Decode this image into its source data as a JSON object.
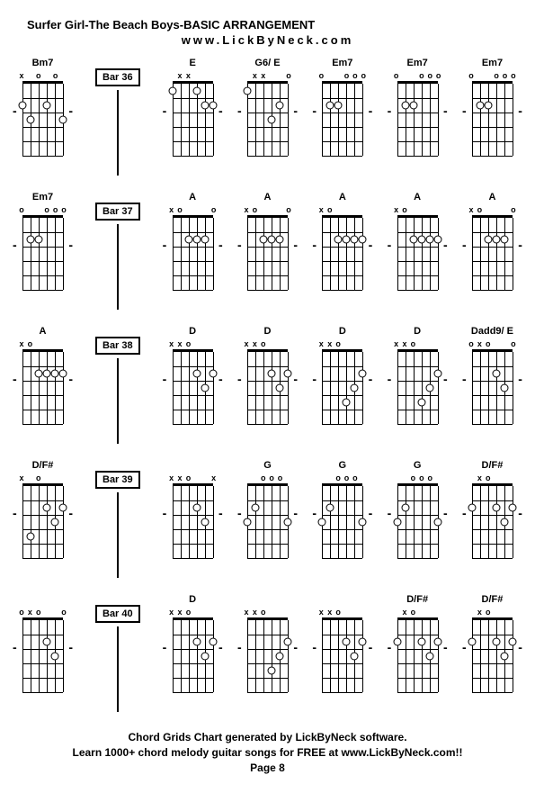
{
  "title": "Surfer Girl-The Beach Boys-BASIC ARRANGEMENT",
  "subtitle": "www.LickByNeck.com",
  "footer": {
    "line1": "Chord Grids Chart generated by LickByNeck software.",
    "line2": "Learn 1000+ chord melody guitar songs for FREE at www.LickByNeck.com!!",
    "line3": "Page 8"
  },
  "rows": [
    {
      "cells": [
        {
          "type": "chord",
          "name": "Bm7",
          "nut": [
            "x",
            "",
            "o",
            "",
            "o",
            ""
          ],
          "dots": [
            [
              0,
              2
            ],
            [
              3,
              2
            ],
            [
              1,
              3
            ],
            [
              5,
              3
            ]
          ]
        },
        {
          "type": "bar",
          "label": "Bar 36"
        },
        {
          "type": "chord",
          "name": "E",
          "nut": [
            "",
            "x",
            "x",
            "",
            "",
            ""
          ],
          "dots": [
            [
              0,
              1
            ],
            [
              3,
              1
            ],
            [
              4,
              2
            ],
            [
              5,
              2
            ]
          ]
        },
        {
          "type": "chord",
          "name": "G6/ E",
          "nut": [
            "",
            "x",
            "x",
            "",
            "",
            "o"
          ],
          "dots": [
            [
              0,
              1
            ],
            [
              4,
              2
            ],
            [
              3,
              3
            ]
          ]
        },
        {
          "type": "chord",
          "name": "Em7",
          "nut": [
            "o",
            "",
            "",
            "o",
            "o",
            "o"
          ],
          "dots": [
            [
              1,
              2
            ],
            [
              2,
              2
            ]
          ]
        },
        {
          "type": "chord",
          "name": "Em7",
          "nut": [
            "o",
            "",
            "",
            "o",
            "o",
            "o"
          ],
          "dots": [
            [
              1,
              2
            ],
            [
              2,
              2
            ]
          ]
        },
        {
          "type": "chord",
          "name": "Em7",
          "nut": [
            "o",
            "",
            "",
            "o",
            "o",
            "o"
          ],
          "dots": [
            [
              1,
              2
            ],
            [
              2,
              2
            ]
          ]
        }
      ]
    },
    {
      "cells": [
        {
          "type": "chord",
          "name": "Em7",
          "nut": [
            "o",
            "",
            "",
            "o",
            "o",
            "o"
          ],
          "dots": [
            [
              1,
              2
            ],
            [
              2,
              2
            ]
          ]
        },
        {
          "type": "bar",
          "label": "Bar 37"
        },
        {
          "type": "chord",
          "name": "A",
          "nut": [
            "x",
            "o",
            "",
            "",
            "",
            "o"
          ],
          "dots": [
            [
              2,
              2
            ],
            [
              3,
              2
            ],
            [
              4,
              2
            ]
          ]
        },
        {
          "type": "chord",
          "name": "A",
          "nut": [
            "x",
            "o",
            "",
            "",
            "",
            "o"
          ],
          "dots": [
            [
              2,
              2
            ],
            [
              3,
              2
            ],
            [
              4,
              2
            ]
          ]
        },
        {
          "type": "chord",
          "name": "A",
          "nut": [
            "x",
            "o",
            "",
            "",
            "",
            ""
          ],
          "dots": [
            [
              2,
              2
            ],
            [
              3,
              2
            ],
            [
              4,
              2
            ],
            [
              5,
              2
            ]
          ]
        },
        {
          "type": "chord",
          "name": "A",
          "nut": [
            "x",
            "o",
            "",
            "",
            "",
            ""
          ],
          "dots": [
            [
              2,
              2
            ],
            [
              3,
              2
            ],
            [
              4,
              2
            ],
            [
              5,
              2
            ]
          ]
        },
        {
          "type": "chord",
          "name": "A",
          "nut": [
            "x",
            "o",
            "",
            "",
            "",
            "o"
          ],
          "dots": [
            [
              2,
              2
            ],
            [
              3,
              2
            ],
            [
              4,
              2
            ]
          ]
        }
      ]
    },
    {
      "cells": [
        {
          "type": "chord",
          "name": "A",
          "nut": [
            "x",
            "o",
            "",
            "",
            "",
            ""
          ],
          "dots": [
            [
              2,
              2
            ],
            [
              3,
              2
            ],
            [
              4,
              2
            ],
            [
              5,
              2
            ]
          ]
        },
        {
          "type": "bar",
          "label": "Bar 38"
        },
        {
          "type": "chord",
          "name": "D",
          "nut": [
            "x",
            "x",
            "o",
            "",
            "",
            ""
          ],
          "dots": [
            [
              3,
              2
            ],
            [
              5,
              2
            ],
            [
              4,
              3
            ]
          ]
        },
        {
          "type": "chord",
          "name": "D",
          "nut": [
            "x",
            "x",
            "o",
            "",
            "",
            ""
          ],
          "dots": [
            [
              3,
              2
            ],
            [
              5,
              2
            ],
            [
              4,
              3
            ]
          ]
        },
        {
          "type": "chord",
          "name": "D",
          "nut": [
            "x",
            "x",
            "o",
            "",
            "",
            ""
          ],
          "dots": [
            [
              5,
              2
            ],
            [
              4,
              3
            ],
            [
              3,
              4
            ]
          ]
        },
        {
          "type": "chord",
          "name": "D",
          "nut": [
            "x",
            "x",
            "o",
            "",
            "",
            ""
          ],
          "dots": [
            [
              5,
              2
            ],
            [
              4,
              3
            ],
            [
              3,
              4
            ]
          ]
        },
        {
          "type": "chord",
          "name": "Dadd9/ E",
          "nut": [
            "o",
            "x",
            "o",
            "",
            "",
            "o"
          ],
          "dots": [
            [
              3,
              2
            ],
            [
              4,
              3
            ]
          ]
        }
      ]
    },
    {
      "cells": [
        {
          "type": "chord",
          "name": "D/F#",
          "nut": [
            "x",
            "",
            "o",
            "",
            "",
            ""
          ],
          "dots": [
            [
              3,
              2
            ],
            [
              5,
              2
            ],
            [
              4,
              3
            ],
            [
              1,
              4
            ]
          ]
        },
        {
          "type": "bar",
          "label": "Bar 39"
        },
        {
          "type": "chord",
          "name": "",
          "nut": [
            "x",
            "x",
            "o",
            "",
            "",
            "x"
          ],
          "dots": [
            [
              3,
              2
            ],
            [
              4,
              3
            ]
          ]
        },
        {
          "type": "chord",
          "name": "G",
          "nut": [
            "",
            "",
            "o",
            "o",
            "o",
            ""
          ],
          "dots": [
            [
              1,
              2
            ],
            [
              0,
              3
            ],
            [
              5,
              3
            ]
          ]
        },
        {
          "type": "chord",
          "name": "G",
          "nut": [
            "",
            "",
            "o",
            "o",
            "o",
            ""
          ],
          "dots": [
            [
              1,
              2
            ],
            [
              0,
              3
            ],
            [
              5,
              3
            ]
          ]
        },
        {
          "type": "chord",
          "name": "G",
          "nut": [
            "",
            "",
            "o",
            "o",
            "o",
            ""
          ],
          "dots": [
            [
              1,
              2
            ],
            [
              0,
              3
            ],
            [
              5,
              3
            ]
          ]
        },
        {
          "type": "chord",
          "name": "D/F#",
          "nut": [
            "",
            "x",
            "o",
            "",
            "",
            ""
          ],
          "dots": [
            [
              0,
              2
            ],
            [
              3,
              2
            ],
            [
              5,
              2
            ],
            [
              4,
              3
            ]
          ]
        }
      ]
    },
    {
      "cells": [
        {
          "type": "chord",
          "name": "",
          "nut": [
            "o",
            "x",
            "o",
            "",
            "",
            "o"
          ],
          "dots": [
            [
              3,
              2
            ],
            [
              4,
              3
            ]
          ]
        },
        {
          "type": "bar",
          "label": "Bar 40"
        },
        {
          "type": "chord",
          "name": "D",
          "nut": [
            "x",
            "x",
            "o",
            "",
            "",
            ""
          ],
          "dots": [
            [
              3,
              2
            ],
            [
              5,
              2
            ],
            [
              4,
              3
            ]
          ]
        },
        {
          "type": "chord",
          "name": "",
          "nut": [
            "x",
            "x",
            "o",
            "",
            "",
            ""
          ],
          "dots": [
            [
              5,
              2
            ],
            [
              4,
              3
            ],
            [
              3,
              4
            ]
          ]
        },
        {
          "type": "chord",
          "name": "",
          "nut": [
            "x",
            "x",
            "o",
            "",
            "",
            ""
          ],
          "dots": [
            [
              3,
              2
            ],
            [
              5,
              2
            ],
            [
              4,
              3
            ]
          ]
        },
        {
          "type": "chord",
          "name": "D/F#",
          "nut": [
            "",
            "x",
            "o",
            "",
            "",
            ""
          ],
          "dots": [
            [
              0,
              2
            ],
            [
              3,
              2
            ],
            [
              5,
              2
            ],
            [
              4,
              3
            ]
          ]
        },
        {
          "type": "chord",
          "name": "D/F#",
          "nut": [
            "",
            "x",
            "o",
            "",
            "",
            ""
          ],
          "dots": [
            [
              0,
              2
            ],
            [
              3,
              2
            ],
            [
              5,
              2
            ],
            [
              4,
              3
            ]
          ]
        }
      ]
    }
  ],
  "strings": 6,
  "frets": 5,
  "stringSpacing": 9,
  "fretSpacing": 16
}
